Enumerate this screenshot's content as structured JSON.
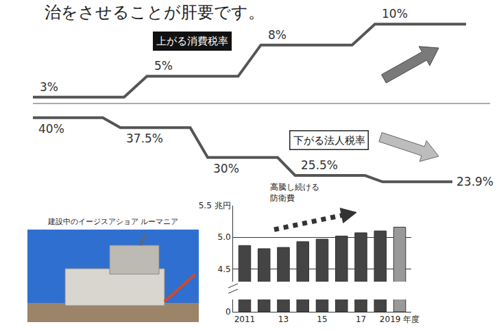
{
  "text": "治をさせることが肝要です。",
  "photo": {
    "caption": "建設中のイージスアショア ルーマニア"
  },
  "chart_data": [
    {
      "type": "line",
      "title": "上がる消費税率",
      "categories": [
        null,
        null,
        null,
        null
      ],
      "values": [
        3,
        5,
        8,
        10
      ],
      "value_labels": [
        "3%",
        "5%",
        "8%",
        "10%"
      ],
      "data_labels": true,
      "line_style": "step",
      "color": "#555555",
      "ylim": [
        2,
        11
      ],
      "yticks": [],
      "tick_labels": false,
      "grid": false
    },
    {
      "type": "line",
      "title": "下がる法人税率",
      "categories": [
        null,
        null,
        null,
        null,
        null
      ],
      "values": [
        40,
        37.5,
        30,
        25.5,
        23.9
      ],
      "value_labels": [
        "40%",
        "37.5%",
        "30%",
        "25.5%",
        "23.9%"
      ],
      "data_labels": true,
      "line_style": "step",
      "color": "#555555",
      "ylim": [
        20,
        42
      ],
      "yticks": [],
      "tick_labels": false,
      "grid": false
    },
    {
      "type": "bar",
      "annotation": "高騰し続ける防衛費",
      "categories": [
        "2011",
        null,
        "13",
        null,
        "15",
        null,
        "17",
        null,
        "2019 年度"
      ],
      "values": [
        4.87,
        4.82,
        4.84,
        4.93,
        4.97,
        5.02,
        5.07,
        5.1,
        5.16
      ],
      "colors": [
        "#444444",
        "#444444",
        "#444444",
        "#444444",
        "#444444",
        "#444444",
        "#444444",
        "#444444",
        "#999999"
      ],
      "ylim": [
        0,
        5.5
      ],
      "ybreak": [
        0.2,
        4.3
      ],
      "yticks": [
        0,
        4.5,
        {
          "value": 5,
          "label": "5.0"
        },
        {
          "value": 5.5,
          "label": "5.5 兆円"
        }
      ],
      "grid": true
    }
  ]
}
